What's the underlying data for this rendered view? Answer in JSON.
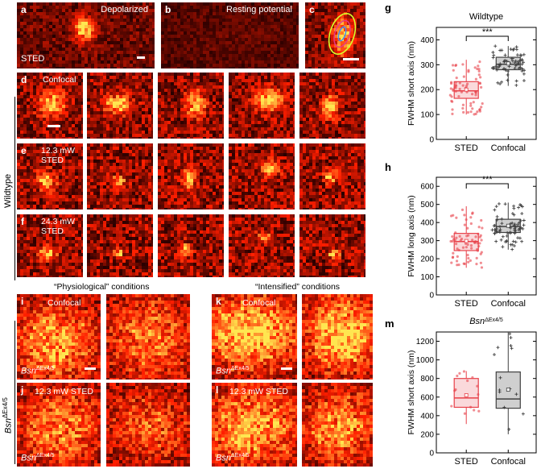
{
  "rows": {
    "top": [
      {
        "letter": "a",
        "caption": "Depolarized",
        "corner": "STED",
        "variant": "blob",
        "scalebar": true
      },
      {
        "letter": "b",
        "caption": "Resting potential",
        "corner": "",
        "variant": "dim",
        "scalebar": false
      },
      {
        "letter": "c",
        "caption": "",
        "corner": "",
        "variant": "ellipse",
        "scalebar": true
      }
    ],
    "d": {
      "letter": "d",
      "caption_lines": [
        "Confocal"
      ],
      "scalebar": true
    },
    "e": {
      "letter": "e",
      "caption_lines": [
        "12.3 mW",
        "STED"
      ],
      "scalebar": false
    },
    "f": {
      "letter": "f",
      "caption_lines": [
        "24.3 mW",
        "STED"
      ],
      "scalebar": false
    }
  },
  "side_label_wildtype": "Wildtype",
  "side_label_bsn": "Bsn",
  "side_label_bsn_sup": "ΔEx4/5",
  "conditions": {
    "physiological": "“Physiological” conditions",
    "intensified": "“Intensified” conditions"
  },
  "bottom_panels": [
    {
      "letter": "i",
      "caption": "Confocal",
      "genotype": "Bsn",
      "genotype_sup": "ΔEx4/5",
      "scalebar": true
    },
    {
      "letter": "j",
      "caption": "12.3 mW STED",
      "genotype": "Bsn",
      "genotype_sup": "ΔEx4/5",
      "scalebar": false
    },
    {
      "letter": "k",
      "caption": "Confocal",
      "genotype": "Bsn",
      "genotype_sup": "ΔEx4/5",
      "scalebar": true
    },
    {
      "letter": "l",
      "caption": "12.3 mW STED",
      "genotype": "Bsn",
      "genotype_sup": "ΔEx4/5",
      "scalebar": false
    }
  ],
  "colors": {
    "sted": "#e8414a",
    "confocal": "#404040",
    "heat_dark": "#3a0000",
    "heat_bright": "#ffe07a"
  },
  "chart_data": [
    {
      "letter": "g",
      "type": "box",
      "title": "Wildtype",
      "title_sup": "",
      "ylabel": "FWHM short axis (nm)",
      "categories": [
        "STED",
        "Confocal"
      ],
      "ylim": [
        0,
        450
      ],
      "yticks": [
        0,
        100,
        200,
        300,
        400
      ],
      "significance": "***",
      "boxes": [
        {
          "name": "STED",
          "q1": 165,
          "median": 195,
          "q3": 232,
          "whisker_low": 100,
          "whisker_high": 320,
          "mean": 200
        },
        {
          "name": "Confocal",
          "q1": 280,
          "median": 302,
          "q3": 330,
          "whisker_low": 215,
          "whisker_high": 375,
          "mean": 305
        }
      ]
    },
    {
      "letter": "h",
      "type": "box",
      "title": "",
      "title_sup": "",
      "ylabel": "FWHM long axis (nm)",
      "categories": [
        "STED",
        "Confocal"
      ],
      "ylim": [
        0,
        650
      ],
      "yticks": [
        0,
        100,
        200,
        300,
        400,
        500,
        600
      ],
      "significance": "***",
      "boxes": [
        {
          "name": "STED",
          "q1": 245,
          "median": 295,
          "q3": 340,
          "whisker_low": 150,
          "whisker_high": 490,
          "mean": 298
        },
        {
          "name": "Confocal",
          "q1": 345,
          "median": 378,
          "q3": 418,
          "whisker_low": 250,
          "whisker_high": 510,
          "mean": 382
        }
      ]
    },
    {
      "letter": "m",
      "type": "box",
      "title": "Bsn",
      "title_sup": "ΔEx4/5",
      "ylabel": "FWHM short axis (nm)",
      "categories": [
        "STED",
        "Confocal"
      ],
      "ylim": [
        0,
        1300
      ],
      "yticks": [
        0,
        200,
        400,
        600,
        800,
        1000,
        1200
      ],
      "significance": "",
      "boxes": [
        {
          "name": "STED",
          "q1": 490,
          "median": 590,
          "q3": 800,
          "whisker_low": 310,
          "whisker_high": 880,
          "mean": 620
        },
        {
          "name": "Confocal",
          "q1": 480,
          "median": 580,
          "q3": 870,
          "whisker_low": 200,
          "whisker_high": 1300,
          "mean": 680
        }
      ]
    }
  ]
}
